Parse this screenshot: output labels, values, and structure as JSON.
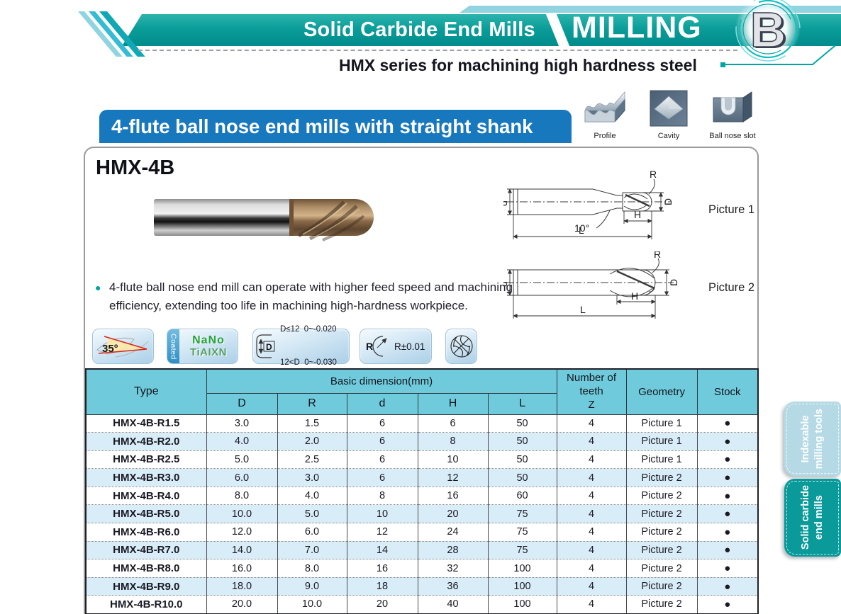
{
  "header": {
    "band_title": "Solid Carbide End Mills",
    "category": "MILLING",
    "tab_letter": "B",
    "subtitle": "HMX series for machining high hardness steel"
  },
  "section": {
    "banner_title": "4-flute ball nose end mills with straight shank"
  },
  "application_icons": [
    {
      "label": "Profile"
    },
    {
      "label": "Cavity"
    },
    {
      "label": "Ball nose slot"
    }
  ],
  "product": {
    "model": "HMX-4B",
    "description": "4-flute ball nose end mill can operate with higher feed speed and machining efficiency, extending too life in machining high-hardness workpiece."
  },
  "drawings": {
    "picture1": {
      "label": "Picture 1",
      "dim_d": "d",
      "dim_D": "D",
      "dim_R": "R",
      "dim_H": "H",
      "dim_L": "L",
      "dim_angle": "10°"
    },
    "picture2": {
      "label": "Picture 2",
      "dim_d": "d",
      "dim_D": "D",
      "dim_R": "R",
      "dim_H": "H",
      "dim_L": "L"
    }
  },
  "badges": {
    "helix_angle": "35°",
    "coated_label": "Coated",
    "coating_line1": "NaNo",
    "coating_line2": "TiAIXN",
    "tol_symbol": "D",
    "tol_line1": "D≤12  0~-0.020",
    "tol_line2": "12<D  0~-0.030",
    "radius_symbol": "R",
    "radius_tol": "R±0.01"
  },
  "table": {
    "headers": {
      "type": "Type",
      "basic_dimension": "Basic dimension(mm)",
      "sub": [
        "D",
        "R",
        "d",
        "H",
        "L"
      ],
      "teeth_line1": "Number of",
      "teeth_line2": "teeth",
      "teeth_line3": "Z",
      "geometry": "Geometry",
      "stock": "Stock"
    },
    "rows": [
      {
        "type": "HMX-4B-R1.5",
        "D": "3.0",
        "R": "1.5",
        "d": "6",
        "H": "6",
        "L": "50",
        "Z": "4",
        "geometry": "Picture 1",
        "stock": "●"
      },
      {
        "type": "HMX-4B-R2.0",
        "D": "4.0",
        "R": "2.0",
        "d": "6",
        "H": "8",
        "L": "50",
        "Z": "4",
        "geometry": "Picture 1",
        "stock": "●"
      },
      {
        "type": "HMX-4B-R2.5",
        "D": "5.0",
        "R": "2.5",
        "d": "6",
        "H": "10",
        "L": "50",
        "Z": "4",
        "geometry": "Picture 1",
        "stock": "●"
      },
      {
        "type": "HMX-4B-R3.0",
        "D": "6.0",
        "R": "3.0",
        "d": "6",
        "H": "12",
        "L": "50",
        "Z": "4",
        "geometry": "Picture 2",
        "stock": "●"
      },
      {
        "type": "HMX-4B-R4.0",
        "D": "8.0",
        "R": "4.0",
        "d": "8",
        "H": "16",
        "L": "60",
        "Z": "4",
        "geometry": "Picture 2",
        "stock": "●"
      },
      {
        "type": "HMX-4B-R5.0",
        "D": "10.0",
        "R": "5.0",
        "d": "10",
        "H": "20",
        "L": "75",
        "Z": "4",
        "geometry": "Picture 2",
        "stock": "●"
      },
      {
        "type": "HMX-4B-R6.0",
        "D": "12.0",
        "R": "6.0",
        "d": "12",
        "H": "24",
        "L": "75",
        "Z": "4",
        "geometry": "Picture 2",
        "stock": "●"
      },
      {
        "type": "HMX-4B-R7.0",
        "D": "14.0",
        "R": "7.0",
        "d": "14",
        "H": "28",
        "L": "75",
        "Z": "4",
        "geometry": "Picture 2",
        "stock": "●"
      },
      {
        "type": "HMX-4B-R8.0",
        "D": "16.0",
        "R": "8.0",
        "d": "16",
        "H": "32",
        "L": "100",
        "Z": "4",
        "geometry": "Picture 2",
        "stock": "●"
      },
      {
        "type": "HMX-4B-R9.0",
        "D": "18.0",
        "R": "9.0",
        "d": "18",
        "H": "36",
        "L": "100",
        "Z": "4",
        "geometry": "Picture 2",
        "stock": "●"
      },
      {
        "type": "HMX-4B-R10.0",
        "D": "20.0",
        "R": "10.0",
        "d": "20",
        "H": "40",
        "L": "100",
        "Z": "4",
        "geometry": "Picture 2",
        "stock": "●"
      }
    ]
  },
  "sidebar": {
    "tabs": [
      {
        "line1": "Indexable",
        "line2": "milling tools",
        "active": false
      },
      {
        "line1": "Solid carbide",
        "line2": "end mills",
        "active": true
      }
    ]
  },
  "colors": {
    "teal_band": "#009c9a",
    "light_stripe": "#8fd4e0",
    "banner_blue": "#1878be",
    "table_header": "#6fcbdb",
    "row_alt": "#d9edf8",
    "tab_inactive": "#b5dae6",
    "tab_active": "#0a9a9a",
    "accent_red": "#d7261d",
    "coating_green": "#27a23b"
  }
}
